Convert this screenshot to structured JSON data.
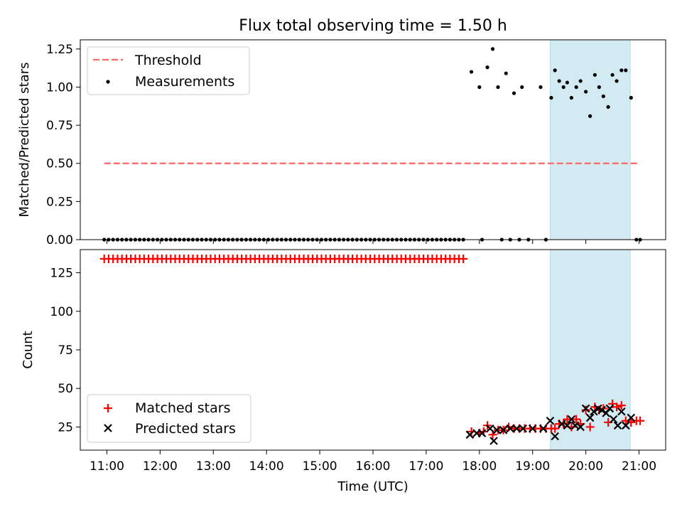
{
  "colors": {
    "threshold": "#ff6666",
    "measurement": "#000000",
    "matched": "#ff0000",
    "predicted": "#000000",
    "highlight": "#add8e6"
  },
  "chart_data": [
    {
      "type": "scatter",
      "title": "Flux total observing time = 1.50 h",
      "xlabel": "",
      "ylabel": "Matched/Predicted stars",
      "xlim": [
        10.5,
        21.5
      ],
      "ylim": [
        0,
        1.31
      ],
      "yticks": [
        0.0,
        0.25,
        0.5,
        0.75,
        1.0,
        1.25
      ],
      "ytick_labels": [
        "0.00",
        "0.25",
        "0.50",
        "0.75",
        "1.00",
        "1.25"
      ],
      "highlight_span": [
        19.333,
        20.833
      ],
      "threshold": {
        "label": "Threshold",
        "value": 0.5,
        "x_range": [
          10.95,
          21.0
        ]
      },
      "measurements": {
        "label": "Measurements",
        "zeros_start": 10.95,
        "zeros_end": 17.75,
        "zeros_step": 0.0833,
        "points": [
          [
            17.85,
            1.1
          ],
          [
            18.0,
            1.0
          ],
          [
            18.15,
            1.13
          ],
          [
            18.25,
            1.25
          ],
          [
            18.35,
            1.0
          ],
          [
            18.5,
            1.09
          ],
          [
            18.65,
            0.96
          ],
          [
            18.8,
            1.0
          ],
          [
            19.15,
            1.0
          ],
          [
            19.35,
            0.93
          ],
          [
            19.42,
            1.11
          ],
          [
            19.5,
            1.04
          ],
          [
            19.58,
            1.0
          ],
          [
            19.65,
            1.03
          ],
          [
            19.73,
            0.93
          ],
          [
            19.82,
            1.0
          ],
          [
            19.9,
            1.04
          ],
          [
            20.0,
            0.97
          ],
          [
            20.08,
            0.81
          ],
          [
            20.17,
            1.08
          ],
          [
            20.25,
            1.0
          ],
          [
            20.33,
            0.94
          ],
          [
            20.42,
            0.87
          ],
          [
            20.5,
            1.08
          ],
          [
            20.58,
            1.04
          ],
          [
            20.67,
            1.11
          ],
          [
            20.75,
            1.11
          ],
          [
            20.85,
            0.93
          ],
          [
            18.05,
            0.0
          ],
          [
            18.42,
            0.0
          ],
          [
            18.58,
            0.0
          ],
          [
            18.75,
            0.0
          ],
          [
            18.92,
            0.0
          ],
          [
            19.25,
            0.0
          ],
          [
            20.95,
            0.0
          ],
          [
            21.02,
            0.0
          ]
        ]
      },
      "legend": [
        "Threshold",
        "Measurements"
      ],
      "legend_loc": "upper left"
    },
    {
      "type": "scatter",
      "xlabel": "Time (UTC)",
      "ylabel": "Count",
      "xlim": [
        10.5,
        21.5
      ],
      "ylim": [
        10,
        140
      ],
      "yticks": [
        25,
        50,
        75,
        100,
        125
      ],
      "ytick_labels": [
        "25",
        "50",
        "75",
        "100",
        "125"
      ],
      "xticks": [
        11,
        12,
        13,
        14,
        15,
        16,
        17,
        18,
        19,
        20,
        21
      ],
      "xtick_labels": [
        "11:00",
        "12:00",
        "13:00",
        "14:00",
        "15:00",
        "16:00",
        "17:00",
        "18:00",
        "19:00",
        "20:00",
        "21:00"
      ],
      "highlight_span": [
        19.333,
        20.833
      ],
      "matched_constant": {
        "value": 134,
        "start": 10.95,
        "end": 17.75,
        "step": 0.0833
      },
      "series": [
        {
          "name": "Matched stars",
          "marker": "+",
          "points": [
            [
              17.85,
              22
            ],
            [
              18.0,
              21
            ],
            [
              18.08,
              22
            ],
            [
              18.15,
              26
            ],
            [
              18.25,
              20
            ],
            [
              18.35,
              23
            ],
            [
              18.45,
              23
            ],
            [
              18.55,
              25
            ],
            [
              18.65,
              24
            ],
            [
              18.75,
              24
            ],
            [
              18.85,
              24
            ],
            [
              18.95,
              24
            ],
            [
              19.05,
              24
            ],
            [
              19.15,
              24
            ],
            [
              19.25,
              24
            ],
            [
              19.35,
              24
            ],
            [
              19.42,
              24
            ],
            [
              19.5,
              27
            ],
            [
              19.58,
              27
            ],
            [
              19.65,
              30
            ],
            [
              19.73,
              25
            ],
            [
              19.82,
              30
            ],
            [
              19.9,
              27
            ],
            [
              20.0,
              36
            ],
            [
              20.08,
              25
            ],
            [
              20.17,
              38
            ],
            [
              20.25,
              36
            ],
            [
              20.33,
              37
            ],
            [
              20.42,
              28
            ],
            [
              20.5,
              40
            ],
            [
              20.58,
              38
            ],
            [
              20.67,
              39
            ],
            [
              20.75,
              29
            ],
            [
              20.85,
              28
            ],
            [
              20.95,
              29
            ],
            [
              21.02,
              29
            ]
          ]
        },
        {
          "name": "Predicted stars",
          "marker": "x",
          "points": [
            [
              17.82,
              20
            ],
            [
              17.95,
              21
            ],
            [
              18.05,
              21
            ],
            [
              18.2,
              24
            ],
            [
              18.27,
              16
            ],
            [
              18.33,
              23
            ],
            [
              18.45,
              23
            ],
            [
              18.58,
              24
            ],
            [
              18.7,
              24
            ],
            [
              18.82,
              24
            ],
            [
              19.0,
              24
            ],
            [
              19.2,
              24
            ],
            [
              19.33,
              29
            ],
            [
              19.42,
              19
            ],
            [
              19.55,
              27
            ],
            [
              19.65,
              26
            ],
            [
              19.73,
              30
            ],
            [
              19.8,
              26
            ],
            [
              19.9,
              25
            ],
            [
              20.0,
              37
            ],
            [
              20.08,
              31
            ],
            [
              20.15,
              35
            ],
            [
              20.23,
              37
            ],
            [
              20.3,
              36
            ],
            [
              20.38,
              34
            ],
            [
              20.45,
              37
            ],
            [
              20.52,
              30
            ],
            [
              20.6,
              26
            ],
            [
              20.67,
              35
            ],
            [
              20.75,
              26
            ],
            [
              20.85,
              31
            ]
          ]
        }
      ],
      "legend": [
        "Matched stars",
        "Predicted stars"
      ],
      "legend_loc": "lower left"
    }
  ]
}
